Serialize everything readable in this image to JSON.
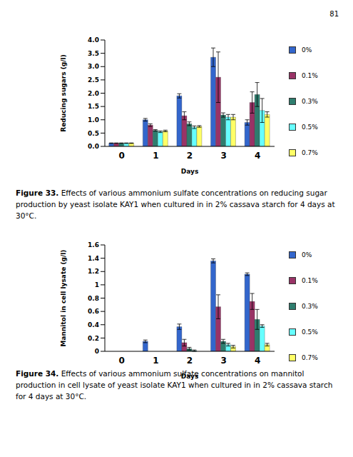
{
  "page_number": "81",
  "chart_data": [
    {
      "type": "bar",
      "title": "Figure 33.",
      "subtitle": "Effects of various ammonium sulfate concentrations on reducing sugar production by yeast isolate KAY1 when cultured in in 2% cassava starch for 4 days at 30°C.",
      "x_label": "Days",
      "y_label": "Reducing sugars (g/l)",
      "categories": [
        "0",
        "1",
        "2",
        "3",
        "4"
      ],
      "ylim": [
        0,
        4
      ],
      "yticks": [
        {
          "value": 0,
          "label": "0.0"
        },
        0.5,
        {
          "value": 1,
          "label": "1.0"
        },
        1.5,
        {
          "value": 2,
          "label": "2.0"
        },
        2.5,
        {
          "value": 3,
          "label": "3.0"
        },
        3.5,
        {
          "value": 4,
          "label": "4.0"
        }
      ],
      "legend": "right",
      "series": [
        {
          "name": "0%",
          "color": "#3366cc",
          "values": [
            0.12,
            1.0,
            1.9,
            3.35,
            0.9
          ],
          "errors": [
            0.01,
            0.05,
            0.08,
            0.35,
            0.1
          ]
        },
        {
          "name": "0.1%",
          "color": "#993366",
          "values": [
            0.12,
            0.8,
            1.15,
            2.6,
            1.65
          ],
          "errors": [
            0.01,
            0.05,
            0.15,
            0.95,
            0.4
          ]
        },
        {
          "name": "0.3%",
          "color": "#2e7d6e",
          "values": [
            0.12,
            0.6,
            0.85,
            1.18,
            1.95
          ],
          "errors": [
            0.01,
            0.03,
            0.07,
            0.08,
            0.45
          ]
        },
        {
          "name": "0.5%",
          "color": "#66ffff",
          "values": [
            0.12,
            0.55,
            0.72,
            1.1,
            1.35
          ],
          "errors": [
            0.01,
            0.03,
            0.05,
            0.1,
            0.45
          ]
        },
        {
          "name": "0.7%",
          "color": "#ffff66",
          "values": [
            0.12,
            0.58,
            0.75,
            1.1,
            1.2
          ],
          "errors": [
            0.01,
            0.03,
            0.03,
            0.1,
            0.1
          ]
        }
      ]
    },
    {
      "type": "bar",
      "title": "Figure 34.",
      "subtitle": "Effects of various ammonium sulfate concentrations on mannitol production in cell lysate of yeast isolate KAY1 when cultured in in 2% cassava starch for 4 days at 30°C.",
      "x_label": "Days",
      "y_label": "Mannitol in cell lysate (g/l)",
      "categories": [
        "0",
        "1",
        "2",
        "3",
        "4"
      ],
      "ylim": [
        0,
        1.6
      ],
      "yticks": [
        0,
        0.2,
        0.4,
        0.6,
        0.8,
        1,
        1.2,
        1.4,
        1.6
      ],
      "legend": "right",
      "series": [
        {
          "name": "0%",
          "color": "#3366cc",
          "values": [
            0,
            0.15,
            0.37,
            1.36,
            1.16
          ],
          "errors": [
            0,
            0.02,
            0.04,
            0.03,
            0.02
          ]
        },
        {
          "name": "0.1%",
          "color": "#993366",
          "values": [
            0,
            0,
            0.13,
            0.67,
            0.75
          ],
          "errors": [
            0,
            0,
            0.05,
            0.18,
            0.12
          ]
        },
        {
          "name": "0.3%",
          "color": "#2e7d6e",
          "values": [
            0,
            0,
            0.04,
            0.15,
            0.48
          ],
          "errors": [
            0,
            0,
            0.02,
            0.03,
            0.15
          ]
        },
        {
          "name": "0.5%",
          "color": "#66ffff",
          "values": [
            0,
            0,
            0.01,
            0.1,
            0.38
          ],
          "errors": [
            0,
            0,
            0.01,
            0.02,
            0.02
          ]
        },
        {
          "name": "0.7%",
          "color": "#ffff66",
          "values": [
            0,
            0,
            0,
            0.07,
            0.1
          ],
          "errors": [
            0,
            0,
            0,
            0.02,
            0.02
          ]
        }
      ]
    }
  ]
}
